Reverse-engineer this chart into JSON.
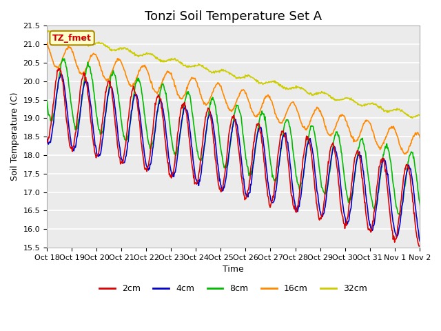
{
  "title": "Tonzi Soil Temperature Set A",
  "xlabel": "Time",
  "ylabel": "Soil Temperature (C)",
  "ylim": [
    15.5,
    21.5
  ],
  "n_days": 16,
  "xtick_labels": [
    "Oct 18",
    "Oct 19",
    "Oct 20",
    "Oct 21",
    "Oct 22",
    "Oct 23",
    "Oct 24",
    "Oct 25",
    "Oct 26",
    "Oct 27",
    "Oct 28",
    "Oct 29",
    "Oct 30",
    "Oct 31",
    "Nov 1",
    "Nov 2"
  ],
  "series_colors": {
    "2cm": "#dd0000",
    "4cm": "#0000cc",
    "8cm": "#00bb00",
    "16cm": "#ff8800",
    "32cm": "#cccc00"
  },
  "series_labels": [
    "2cm",
    "4cm",
    "8cm",
    "16cm",
    "32cm"
  ],
  "annotation_label": "TZ_fmet",
  "annotation_color": "#cc0000",
  "annotation_bg": "#ffffcc",
  "annotation_border": "#aa8800",
  "plot_bg_color": "#ebebeb",
  "grid_color": "#ffffff",
  "title_fontsize": 13,
  "label_fontsize": 9,
  "tick_fontsize": 8
}
